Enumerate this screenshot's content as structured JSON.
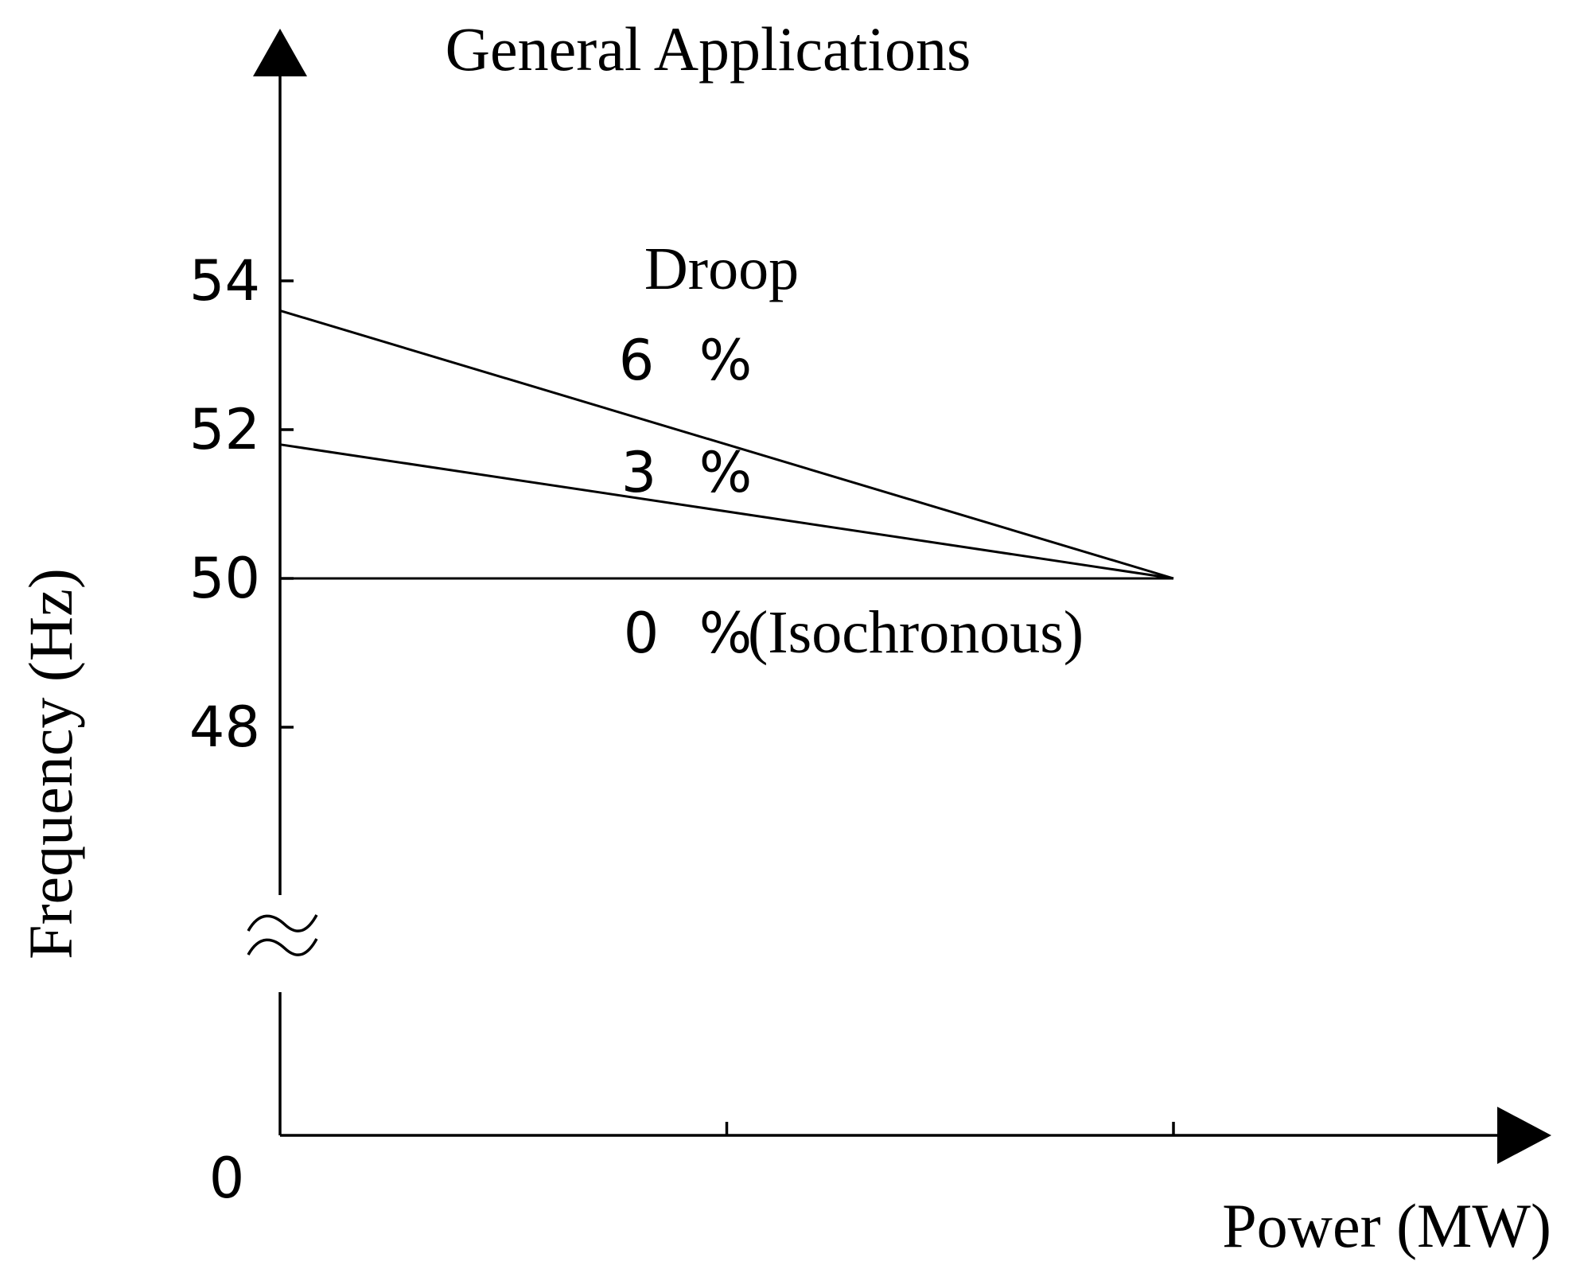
{
  "chart_data": {
    "type": "line",
    "title": "General Applications",
    "xlabel": "Power (MW)",
    "ylabel": "Frequency (Hz)",
    "origin_label": "0",
    "y_ticks": [
      48,
      50,
      52,
      54
    ],
    "y_tick_labels": [
      "48",
      "50",
      "52",
      "54"
    ],
    "x_ticks": [
      0.5,
      1.0
    ],
    "y_axis_break": true,
    "xlim": [
      0,
      1.4
    ],
    "ylim": [
      0,
      57
    ],
    "legend_title": "Droop",
    "series": [
      {
        "name": "6 %",
        "x": [
          0,
          1.0
        ],
        "y": [
          53.6,
          50
        ],
        "label_parts": [
          "6",
          "%"
        ]
      },
      {
        "name": "3 %",
        "x": [
          0,
          1.0
        ],
        "y": [
          51.8,
          50
        ],
        "label_parts": [
          "3",
          "%"
        ]
      },
      {
        "name": "0 %(Isochronous)",
        "x": [
          0,
          1.0
        ],
        "y": [
          50,
          50
        ],
        "label_parts": [
          "0",
          "%",
          "(Isochronous)"
        ]
      }
    ]
  }
}
